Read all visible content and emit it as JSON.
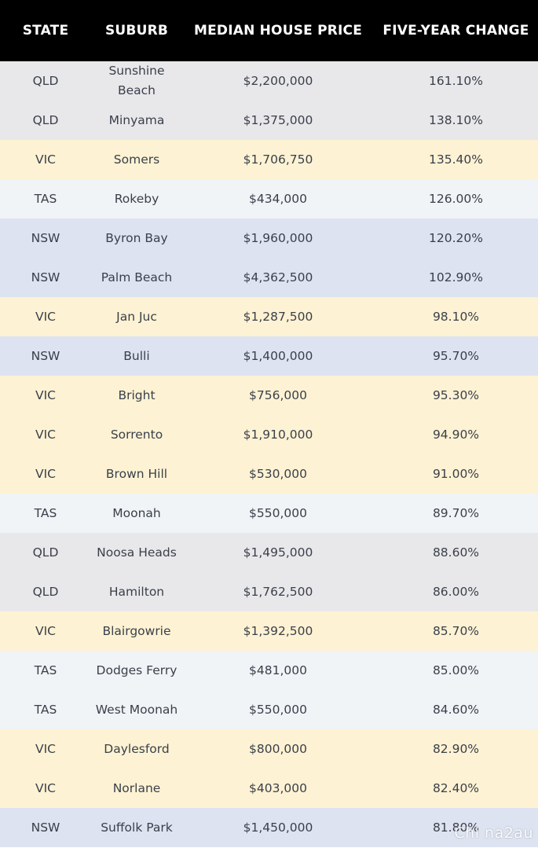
{
  "header": {
    "state": "STATE",
    "suburb": "SUBURB",
    "price": "MEDIAN HOUSE PRICE",
    "change": "FIVE-YEAR CHANGE"
  },
  "colors": {
    "header_bg": "#000000",
    "QLD": "#e8e8ea",
    "VIC": "#fdf2d3",
    "TAS": "#f0f4f7",
    "NSW": "#dde3f1"
  },
  "rows": [
    {
      "state": "QLD",
      "suburb": "Sunshine Beach",
      "price": "$2,200,000",
      "change": "161.10%"
    },
    {
      "state": "QLD",
      "suburb": "Minyama",
      "price": "$1,375,000",
      "change": "138.10%"
    },
    {
      "state": "VIC",
      "suburb": "Somers",
      "price": "$1,706,750",
      "change": "135.40%"
    },
    {
      "state": "TAS",
      "suburb": "Rokeby",
      "price": "$434,000",
      "change": "126.00%"
    },
    {
      "state": "NSW",
      "suburb": "Byron Bay",
      "price": "$1,960,000",
      "change": "120.20%"
    },
    {
      "state": "NSW",
      "suburb": "Palm Beach",
      "price": "$4,362,500",
      "change": "102.90%"
    },
    {
      "state": "VIC",
      "suburb": "Jan Juc",
      "price": "$1,287,500",
      "change": "98.10%"
    },
    {
      "state": "NSW",
      "suburb": "Bulli",
      "price": "$1,400,000",
      "change": "95.70%"
    },
    {
      "state": "VIC",
      "suburb": "Bright",
      "price": "$756,000",
      "change": "95.30%"
    },
    {
      "state": "VIC",
      "suburb": "Sorrento",
      "price": "$1,910,000",
      "change": "94.90%"
    },
    {
      "state": "VIC",
      "suburb": "Brown Hill",
      "price": "$530,000",
      "change": "91.00%"
    },
    {
      "state": "TAS",
      "suburb": "Moonah",
      "price": "$550,000",
      "change": "89.70%"
    },
    {
      "state": "QLD",
      "suburb": "Noosa Heads",
      "price": "$1,495,000",
      "change": "88.60%"
    },
    {
      "state": "QLD",
      "suburb": "Hamilton",
      "price": "$1,762,500",
      "change": "86.00%"
    },
    {
      "state": "VIC",
      "suburb": "Blairgowrie",
      "price": "$1,392,500",
      "change": "85.70%"
    },
    {
      "state": "TAS",
      "suburb": "Dodges Ferry",
      "price": "$481,000",
      "change": "85.00%"
    },
    {
      "state": "TAS",
      "suburb": "West Moonah",
      "price": "$550,000",
      "change": "84.60%"
    },
    {
      "state": "VIC",
      "suburb": "Daylesford",
      "price": "$800,000",
      "change": "82.90%"
    },
    {
      "state": "VIC",
      "suburb": "Norlane",
      "price": "$403,000",
      "change": "82.40%"
    },
    {
      "state": "NSW",
      "suburb": "Suffolk Park",
      "price": "$1,450,000",
      "change": "81.80%"
    }
  ],
  "watermark": "Chi na2au"
}
